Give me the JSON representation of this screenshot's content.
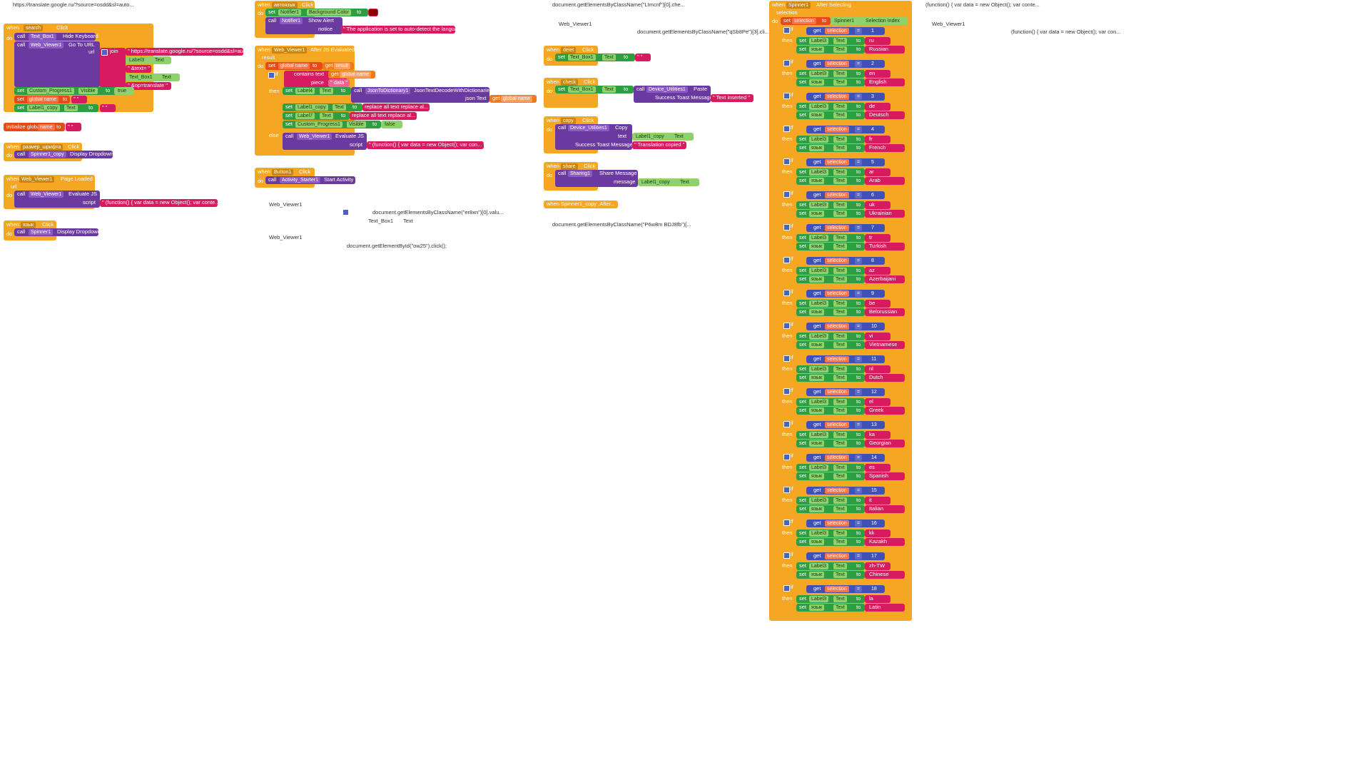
{
  "col1": {
    "url_header": "https://translate.google.ru/?source=osdd&sl=auto...",
    "search_block": {
      "when": "when",
      "component": "search",
      "event": "Click",
      "do": "do",
      "call1": "call",
      "call1_comp": "Text_Box1",
      "call1_method": "Hide Keyboard",
      "call2": "call",
      "call2_comp": "Web_Viewer1",
      "call2_method": "Go To URL",
      "url": "url",
      "join": "join",
      "join_items": [
        "\" https://translate.google.ru/?source=osdd&sl=auto...",
        "Label3",
        "Text",
        "\" &text= \"",
        "Text_Box1",
        "Text",
        "\" &op=translate \""
      ],
      "set1": "set",
      "set1_comp": "Custom_Progress1",
      "set1_prop": "Visible",
      "to": "to",
      "set1_val": "true",
      "set2": "set",
      "set2_var": "global name",
      "set2_to": "to",
      "set2_val": "\" \"",
      "set3": "set",
      "set3_comp": "Label1_copy",
      "set3_prop": "Text",
      "set3_to": "to",
      "set3_val": "\" \""
    },
    "init_global": {
      "label": "initialize global",
      "name": "name",
      "to": "to",
      "val": "\" \""
    },
    "font_size_block": {
      "when": "when",
      "component": "размер_шрифта",
      "event": "Click",
      "do": "do",
      "call": "call",
      "comp": "Spinner1_copy",
      "method": "Display Dropdown"
    },
    "page_loaded": {
      "when": "when",
      "component": "Web_Viewer1",
      "event": "Page Loaded",
      "url": "url",
      "do": "do",
      "call": "call",
      "comp": "Web_Viewer1",
      "method": "Evaluate JS",
      "script": "script",
      "script_val": "\" (function() { var data = new Object(); var conte... \""
    },
    "lang_block": {
      "when": "when",
      "component": "язык",
      "event": "Click",
      "do": "do",
      "call": "call",
      "comp": "Spinner1",
      "method": "Display Dropdown"
    }
  },
  "col2": {
    "auto_block": {
      "when": "when",
      "component": "автоязык",
      "event": "Click",
      "do": "do",
      "set": "set",
      "set_comp": "Notifier1",
      "set_prop": "Background Color",
      "to": "to",
      "call": "call",
      "call_comp": "Notifier1",
      "call_method": "Show Alert",
      "notice": "notice",
      "notice_val": "\" The application is set to auto-detect the language \""
    },
    "after_js": {
      "when": "when",
      "component": "Web_Viewer1",
      "event": "After JS Evaluated",
      "result": "result",
      "do": "do",
      "set": "set",
      "var": "global name",
      "to": "to",
      "get": "get",
      "get_var": "result",
      "if": "if",
      "contains": "contains text",
      "get2": "get",
      "get2_var": "global name",
      "piece": "piece",
      "piece_val": "\" data \"",
      "then": "then",
      "t1_set": "set",
      "t1_comp": "Label4",
      "t1_prop": "Text",
      "t1_to": "to",
      "t1_call": "call",
      "t1_call_comp": "JsonToDictionary1",
      "t1_method": "JsonTextDecodeWithDictionaries",
      "t1_json": "json Text",
      "t1_get": "get",
      "t1_get_var": "global name",
      "t2_set": "set",
      "t2_comp": "Label1_copy",
      "t2_prop": "Text",
      "t2_to": "to",
      "t2_val": "replace all text replace al...",
      "t3_set": "set",
      "t3_comp": "Label7",
      "t3_prop": "Text",
      "t3_to": "to",
      "t3_val": "replace all text replace al...",
      "t4_set": "set",
      "t4_comp": "Custom_Progress1",
      "t4_prop": "Visible",
      "t4_to": "to",
      "t4_val": "false",
      "else": "else",
      "e_call": "call",
      "e_comp": "Web_Viewer1",
      "e_method": "Evaluate JS",
      "e_script": "script",
      "e_script_val": "\" (function() { var data = new Object(); var con... \""
    },
    "button_block": {
      "when": "when",
      "component": "Button1",
      "event": "Click",
      "do": "do",
      "call": "call",
      "comp": "Activity_Starter1",
      "method": "Start Activity"
    },
    "loose": {
      "wv1": "Web_Viewer1",
      "doc1": "document.getElementsByClassName(\"er8xn\")[0].valu...",
      "tb": "Text_Box1",
      "tb_prop": "Text",
      "wv2": "Web_Viewer1",
      "doc2": "document.getElementById(\"ow25\").click();"
    }
  },
  "col3": {
    "doc_top": "document.getElementsByClassName(\"LImcnf\")[0].che...",
    "wv": "Web_Viewer1",
    "doc_top2": "document.getElementsByClassName(\"qSb8Pe\")[3].cli...",
    "delete_block": {
      "when": "when",
      "component": "delet",
      "event": "Click",
      "do": "do",
      "set": "set",
      "comp": "Text_Box1",
      "prop": "Text",
      "to": "to",
      "val": "\" \""
    },
    "check_block": {
      "when": "when",
      "component": "check",
      "event": "Click",
      "do": "do",
      "set": "set",
      "comp": "Text_Box1",
      "prop": "Text",
      "to": "to",
      "call": "call",
      "call_comp": "Device_Utilities1",
      "method": "Paste",
      "toast": "Success Toast Message",
      "toast_val": "\" Text inserted \""
    },
    "copy_block": {
      "when": "when",
      "component": "copy",
      "event": "Click",
      "do": "do",
      "call": "call",
      "comp": "Device_Utilities1",
      "method": "Copy",
      "text": "text",
      "text_comp": "Label1_copy",
      "text_prop": "Text",
      "toast": "Success Toast Message",
      "toast_val": "\" Translation copied \""
    },
    "share_block": {
      "when": "when",
      "component": "share",
      "event": "Click",
      "do": "do",
      "call": "call",
      "comp": "Sharing1",
      "method": "Share Message",
      "message": "message",
      "msg_comp": "Label1_copy",
      "msg_prop": "Text"
    },
    "spinner_copy": "when Spinner1_copy .After...",
    "doc_bottom": "document.getElementsByClassName(\"P6w8m BDJ8fb\")[..."
  },
  "col4": {
    "header": {
      "when": "when",
      "component": "Spinner1",
      "event": "After Selecting",
      "selection": "selection",
      "do": "do",
      "set": "set",
      "var": "selection",
      "to": "to",
      "comp": "Spinner1",
      "prop": "Selection Index"
    },
    "labels": {
      "if": "if",
      "get": "get",
      "sel": "selection",
      "eq": "=",
      "then": "then",
      "set": "set",
      "label": "Label3",
      "text": "Text",
      "to": "to",
      "lang": "язык"
    },
    "cases": [
      {
        "n": "1",
        "code": "ru",
        "name": "Russian"
      },
      {
        "n": "2",
        "code": "en",
        "name": "English"
      },
      {
        "n": "3",
        "code": "de",
        "name": "Deutsch"
      },
      {
        "n": "4",
        "code": "fr",
        "name": "French"
      },
      {
        "n": "5",
        "code": "ar",
        "name": "Arab"
      },
      {
        "n": "6",
        "code": "uk",
        "name": "Ukrainian"
      },
      {
        "n": "7",
        "code": "tr",
        "name": "Turkish"
      },
      {
        "n": "8",
        "code": "az",
        "name": "Azerbaijani"
      },
      {
        "n": "9",
        "code": "be",
        "name": "Belorussian"
      },
      {
        "n": "10",
        "code": "vi",
        "name": "Vietnamese"
      },
      {
        "n": "11",
        "code": "nl",
        "name": "Dutch"
      },
      {
        "n": "12",
        "code": "el",
        "name": "Greek"
      },
      {
        "n": "13",
        "code": "ka",
        "name": "Georgian"
      },
      {
        "n": "14",
        "code": "es",
        "name": "Spanish"
      },
      {
        "n": "15",
        "code": "it",
        "name": "Italian"
      },
      {
        "n": "16",
        "code": "kk",
        "name": "Kazakh"
      },
      {
        "n": "17",
        "code": "zh-TW",
        "name": "Chinese"
      },
      {
        "n": "18",
        "code": "la",
        "name": "Latin"
      }
    ]
  },
  "col5": {
    "top": "(function() { var data = new Object(); var conte...",
    "wv": "Web_Viewer1",
    "top2": "(function() { var data = new Object(); var con..."
  }
}
